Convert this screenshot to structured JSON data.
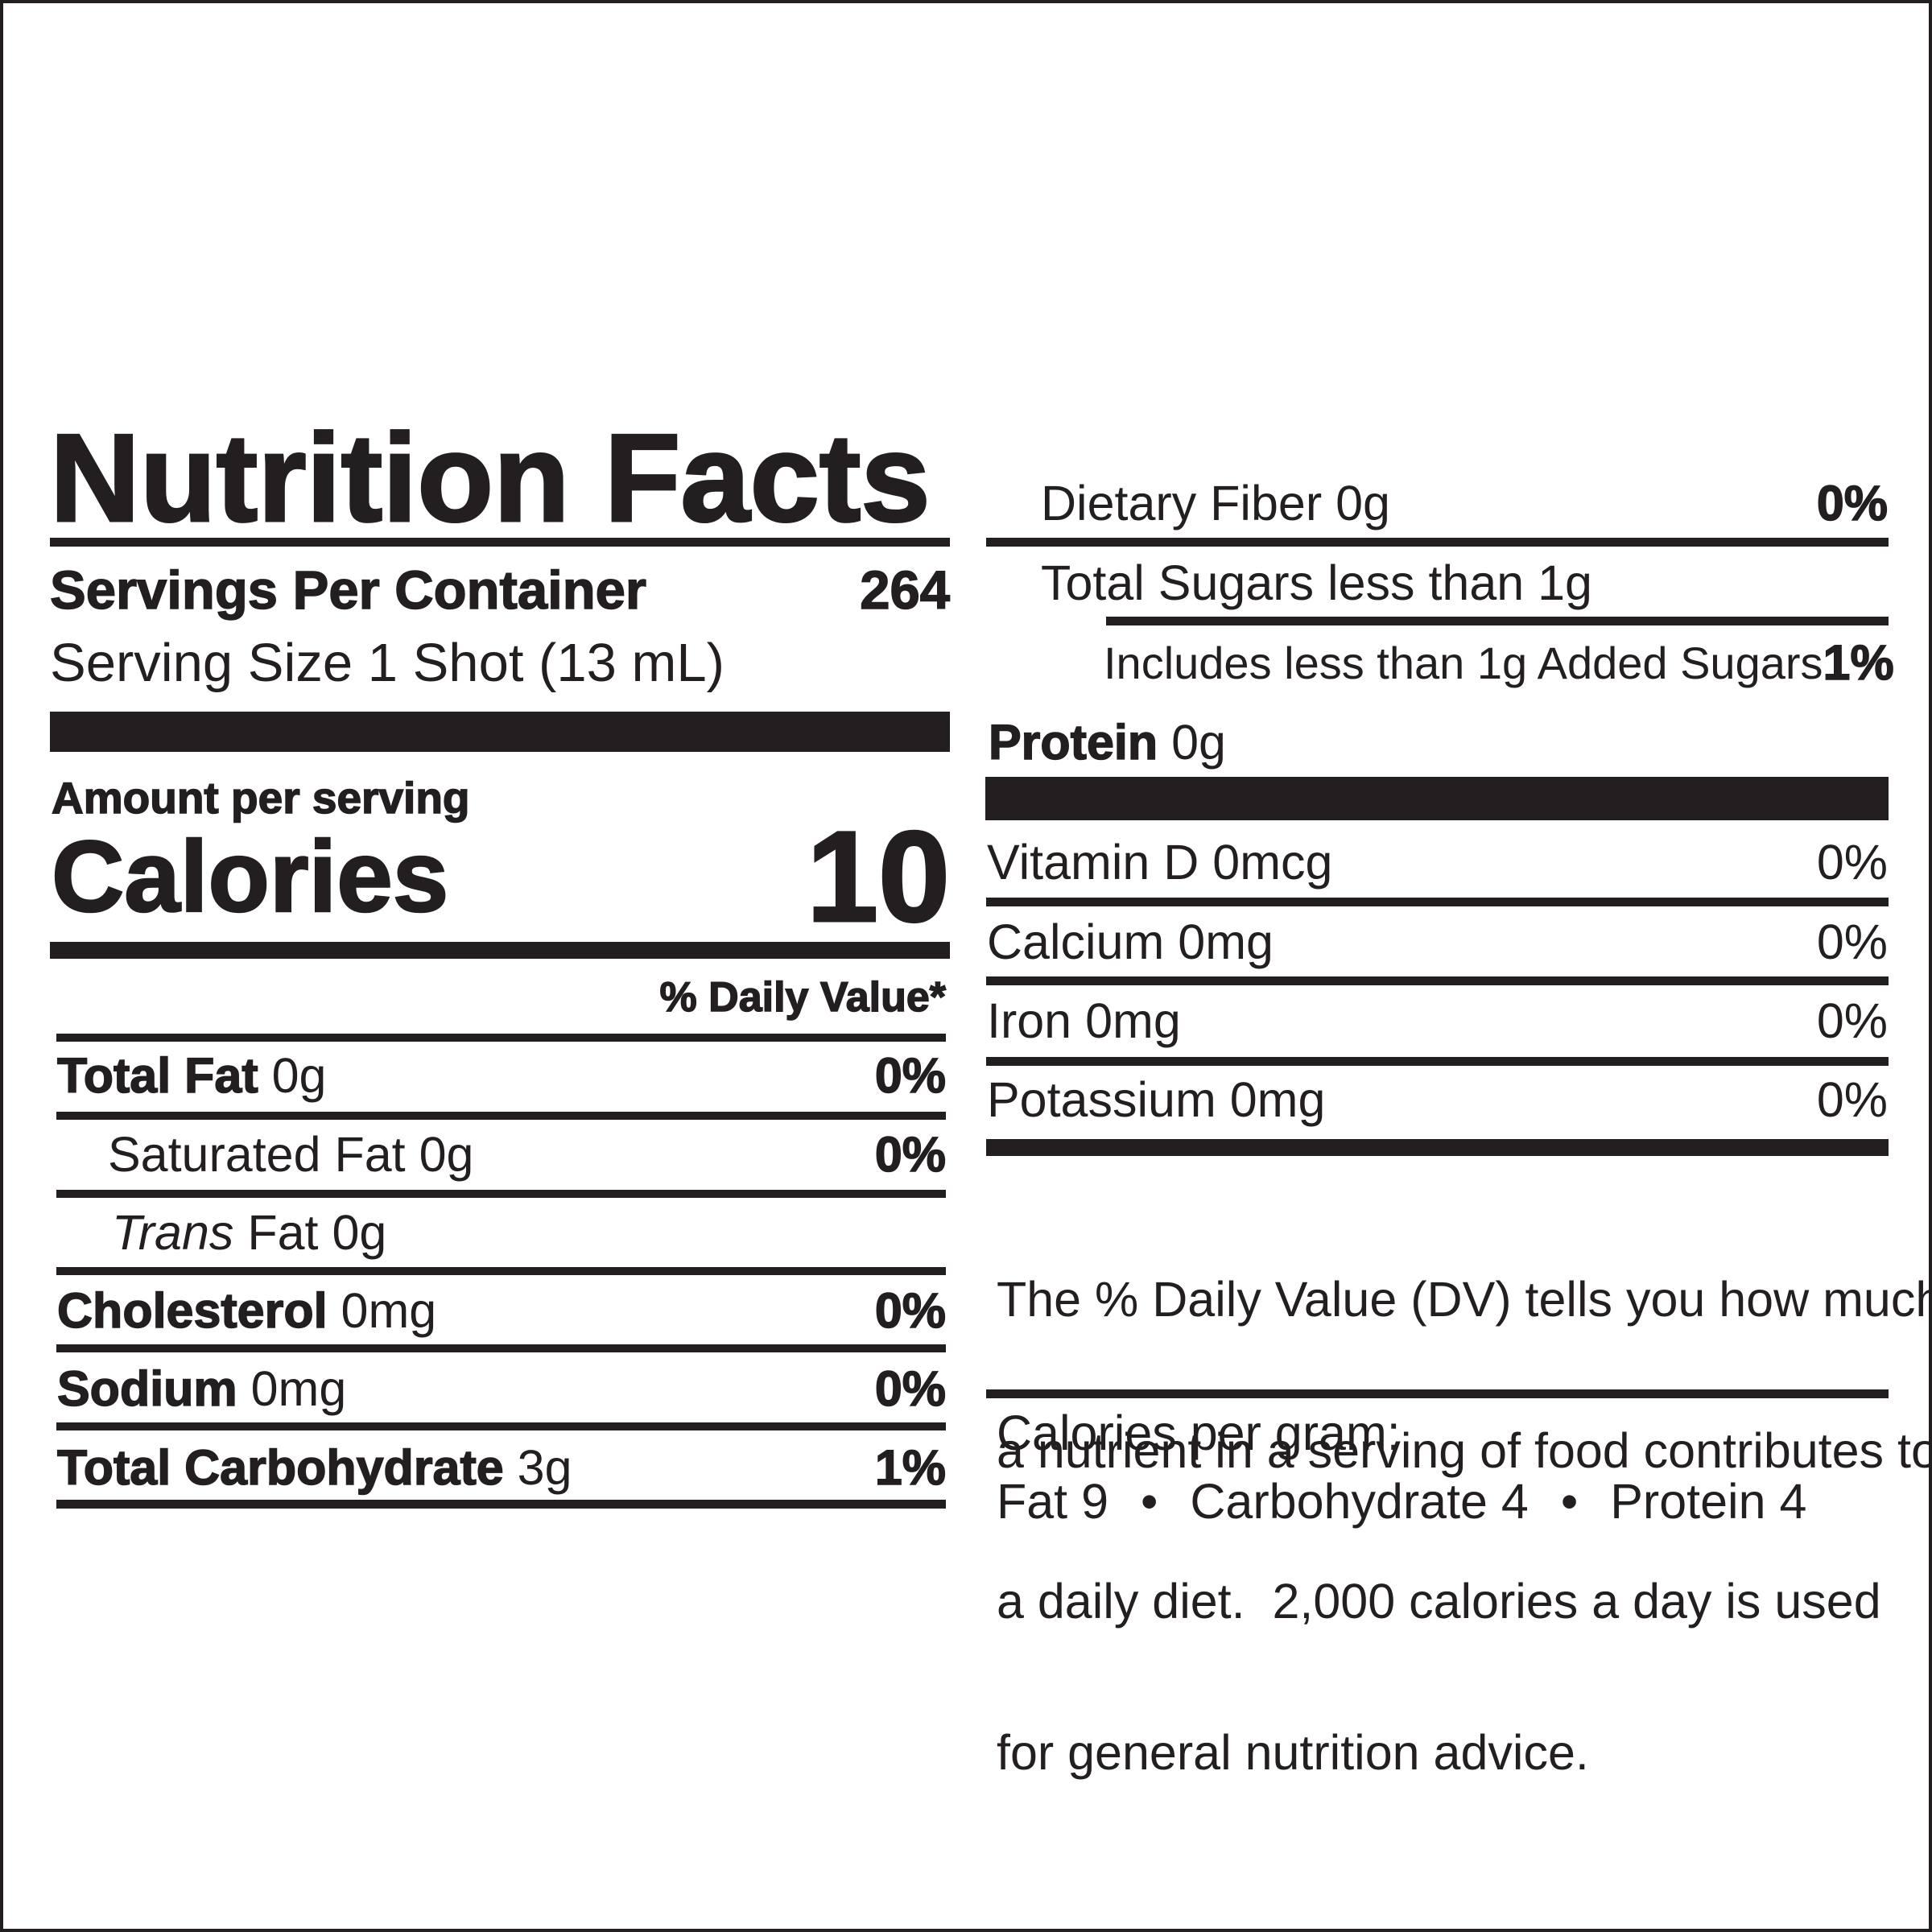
{
  "title": "Nutrition Facts",
  "servings_per_container": {
    "label": "Servings Per Container",
    "value": "264"
  },
  "serving_size": "Serving Size 1 Shot (13 mL)",
  "amount_per_serving": "Amount per serving",
  "calories": {
    "label": "Calories",
    "value": "10"
  },
  "daily_value_header": "% Daily Value*",
  "nutrients": [
    {
      "name": "Total Fat",
      "amount": "0g",
      "dv": "0%"
    },
    {
      "name": "Saturated Fat",
      "amount": "0g",
      "dv": "0%"
    },
    {
      "name_italic": "Trans",
      "name": "Fat",
      "amount": "0g"
    },
    {
      "name": "Cholesterol",
      "amount": "0mg",
      "dv": "0%"
    },
    {
      "name": "Sodium",
      "amount": "0mg",
      "dv": "0%"
    },
    {
      "name": "Total Carbohydrate",
      "amount": "3g",
      "dv": "1%"
    },
    {
      "name": "Dietary Fiber",
      "amount": "0g",
      "dv": "0%"
    },
    {
      "name": "Total Sugars",
      "amount": "less than 1g"
    },
    {
      "name": "Includes less than 1g Added Sugars",
      "dv": "1%"
    },
    {
      "name": "Protein",
      "amount": "0g"
    }
  ],
  "vitamins_minerals": [
    {
      "name": "Vitamin D",
      "amount": "0mcg",
      "dv": "0%"
    },
    {
      "name": "Calcium",
      "amount": "0mg",
      "dv": "0%"
    },
    {
      "name": "Iron",
      "amount": "0mg",
      "dv": "0%"
    },
    {
      "name": "Potassium",
      "amount": "0mg",
      "dv": "0%"
    }
  ],
  "footnote": [
    "The % Daily Value (DV) tells you how much",
    "a nutrient in a serving of food contributes to",
    "a daily diet.  2,000 calories a day is used",
    "for general nutrition advice."
  ],
  "calories_per_gram": {
    "label": "Calories per gram:",
    "items": [
      "Fat 9",
      "Carbohydrate 4",
      "Protein 4"
    ]
  }
}
